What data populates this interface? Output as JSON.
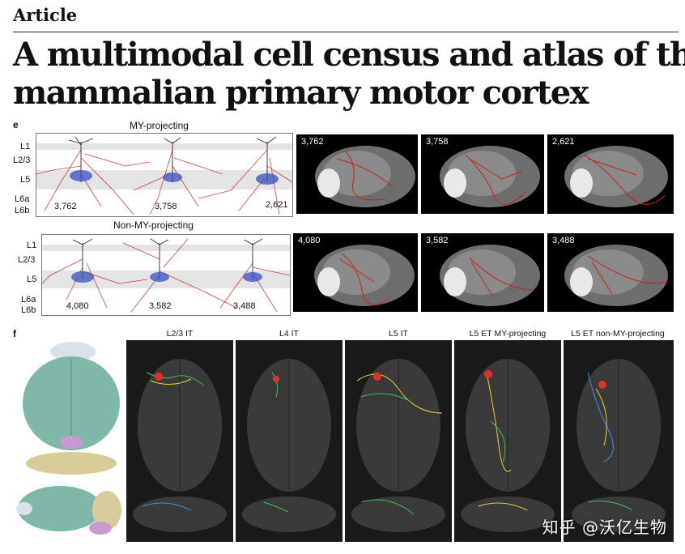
{
  "header": {
    "label": "Article"
  },
  "title": {
    "line1": "A multimodal cell census and atlas of the",
    "line2": "mammalian primary motor cortex"
  },
  "panel_e": {
    "letter": "e",
    "layers": [
      "L1",
      "L2/3",
      "L5",
      "L6a",
      "L6b"
    ],
    "groups": [
      {
        "title": "MY-projecting",
        "counts": [
          "3,762",
          "3,758",
          "2,621"
        ]
      },
      {
        "title": "Non-MY-projecting",
        "counts": [
          "4,080",
          "3,582",
          "3,488"
        ]
      }
    ]
  },
  "panel_f": {
    "letter": "f",
    "columns": [
      "L2/3 IT",
      "L4 IT",
      "L5 IT",
      "L5 ET MY-projecting",
      "L5 ET non-MY-projecting"
    ]
  },
  "watermark": "知乎 @沃亿生物",
  "colors": {
    "axon_red": "#c0281e",
    "dendrite_blue": "#3a4fc0",
    "atlas_teal": "#7fb8a8",
    "background_black": "#000000"
  }
}
